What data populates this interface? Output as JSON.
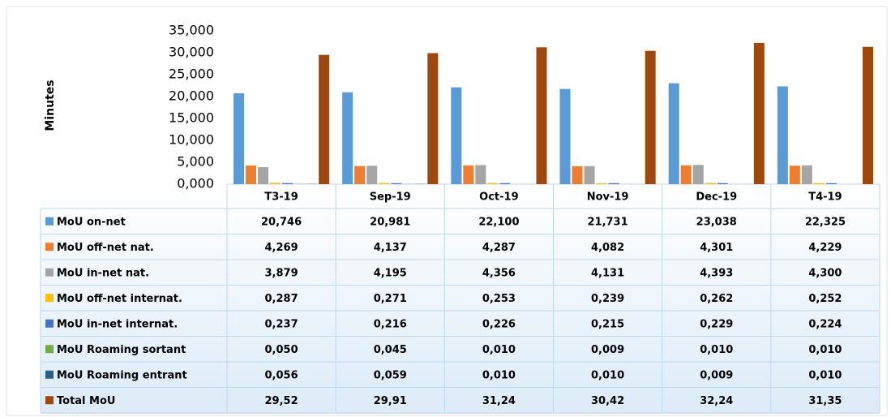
{
  "chart_data": {
    "type": "bar",
    "y_label": "Minutes",
    "categories": [
      "T3-19",
      "Sep-19",
      "Oct-19",
      "Nov-19",
      "Dec-19",
      "T4-19"
    ],
    "ylim": [
      0,
      35
    ],
    "yticks": [
      {
        "value": 0,
        "label": "0,000"
      },
      {
        "value": 5,
        "label": "5,000"
      },
      {
        "value": 10,
        "label": "10,000"
      },
      {
        "value": 15,
        "label": "15,000"
      },
      {
        "value": 20,
        "label": "20,000"
      },
      {
        "value": 25,
        "label": "25,000"
      },
      {
        "value": 30,
        "label": "30,000"
      },
      {
        "value": 35,
        "label": "35,000"
      }
    ],
    "grid": false,
    "series": [
      {
        "name": "MoU on-net",
        "color": "#5b9bd5",
        "values": [
          20.746,
          20.981,
          22.1,
          21.731,
          23.038,
          22.325
        ],
        "value_labels": [
          "20,746",
          "20,981",
          "22,100",
          "21,731",
          "23,038",
          "22,325"
        ]
      },
      {
        "name": "MoU off-net nat.",
        "color": "#ed7d31",
        "values": [
          4.269,
          4.137,
          4.287,
          4.082,
          4.301,
          4.229
        ],
        "value_labels": [
          "4,269",
          "4,137",
          "4,287",
          "4,082",
          "4,301",
          "4,229"
        ]
      },
      {
        "name": "MoU in-net nat.",
        "color": "#a5a5a5",
        "values": [
          3.879,
          4.195,
          4.356,
          4.131,
          4.393,
          4.3
        ],
        "value_labels": [
          "3,879",
          "4,195",
          "4,356",
          "4,131",
          "4,393",
          "4,300"
        ]
      },
      {
        "name": "MoU off-net internat.",
        "color": "#ffc000",
        "values": [
          0.287,
          0.271,
          0.253,
          0.239,
          0.262,
          0.252
        ],
        "value_labels": [
          "0,287",
          "0,271",
          "0,253",
          "0,239",
          "0,262",
          "0,252"
        ]
      },
      {
        "name": "MoU in-net internat.",
        "color": "#4472c4",
        "values": [
          0.237,
          0.216,
          0.226,
          0.215,
          0.229,
          0.224
        ],
        "value_labels": [
          "0,237",
          "0,216",
          "0,226",
          "0,215",
          "0,229",
          "0,224"
        ]
      },
      {
        "name": "MoU Roaming sortant",
        "color": "#70ad47",
        "values": [
          0.05,
          0.045,
          0.01,
          0.009,
          0.01,
          0.01
        ],
        "value_labels": [
          "0,050",
          "0,045",
          "0,010",
          "0,009",
          "0,010",
          "0,010"
        ]
      },
      {
        "name": "MoU Roaming entrant",
        "color": "#255e91",
        "values": [
          0.056,
          0.059,
          0.01,
          0.01,
          0.009,
          0.01
        ],
        "value_labels": [
          "0,056",
          "0,059",
          "0,010",
          "0,010",
          "0,009",
          "0,010"
        ]
      },
      {
        "name": "Total MoU",
        "color": "#9e480e",
        "values": [
          29.52,
          29.91,
          31.24,
          30.42,
          32.24,
          31.35
        ],
        "value_labels": [
          "29,52",
          "29,91",
          "31,24",
          "30,42",
          "32,24",
          "31,35"
        ]
      }
    ]
  }
}
